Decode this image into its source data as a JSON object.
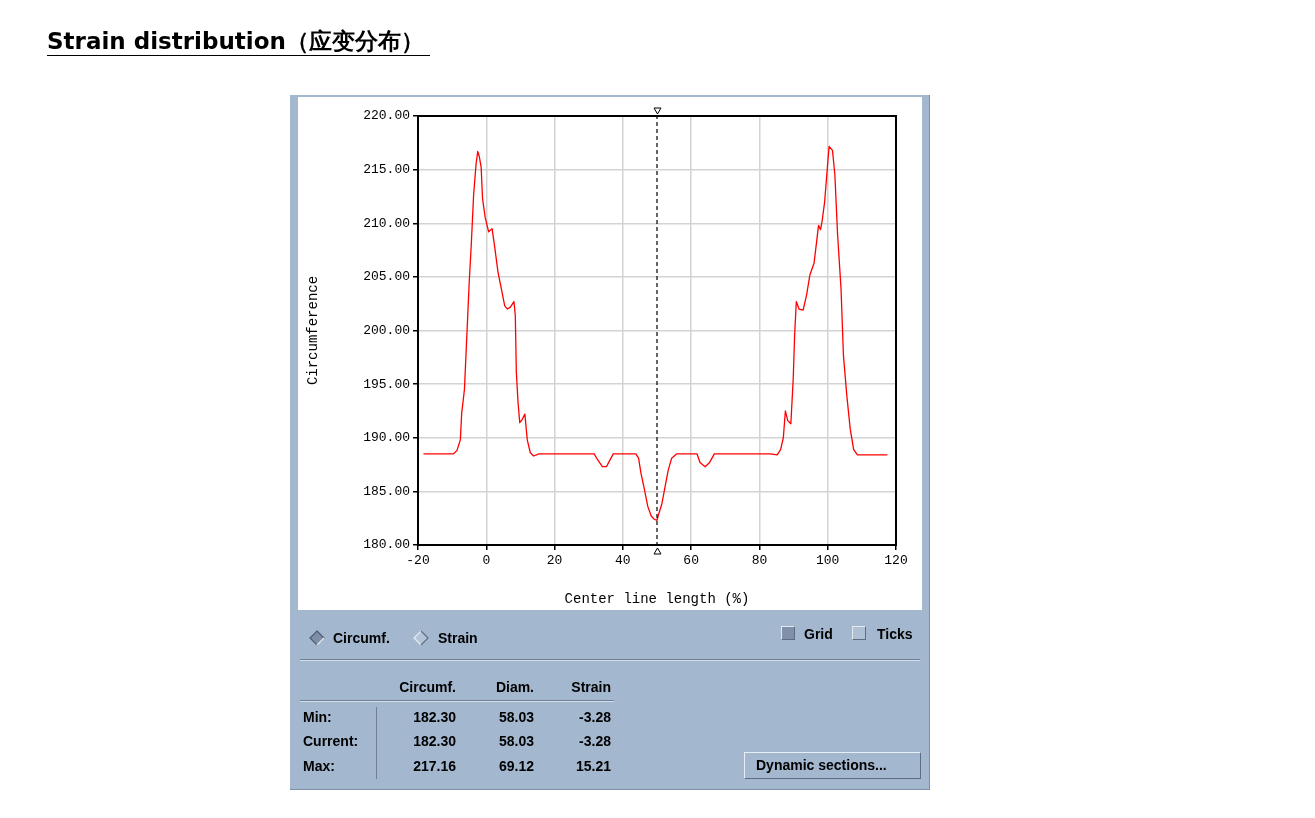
{
  "chart_data": {
    "type": "line",
    "title": "Strain distribution（应变分布）",
    "xlabel": "Center line length (%)",
    "ylabel": "Circumference",
    "x": [
      -18.4,
      -9.6,
      -8.6,
      -7.6,
      -7.2,
      -6.4,
      -5.7,
      -5.0,
      -4.4,
      -3.7,
      -3.0,
      -2.5,
      -2.1,
      -1.5,
      -1.1,
      -0.3,
      0.7,
      1.7,
      2.5,
      3.4,
      4.4,
      5.4,
      6.2,
      7.1,
      8.1,
      8.5,
      8.8,
      9.3,
      9.8,
      10.5,
      11.3,
      12.0,
      12.9,
      13.9,
      15.4,
      31.6,
      32.5,
      34.0,
      35.2,
      36.0,
      37.2,
      43.8,
      44.6,
      45.3,
      46.3,
      47.3,
      48.3,
      49.2,
      50.0,
      50.4,
      51.4,
      52.4,
      53.3,
      54.3,
      55.8,
      61.7,
      62.6,
      64.1,
      65.4,
      66.8,
      83.2,
      85.2,
      86.2,
      87.0,
      87.6,
      88.3,
      89.2,
      89.9,
      90.3,
      90.8,
      91.6,
      92.8,
      93.8,
      94.8,
      96.0,
      96.8,
      97.3,
      97.9,
      98.4,
      99.1,
      99.9,
      100.4,
      101.4,
      102.1,
      102.9,
      103.9,
      104.6,
      105.6,
      106.6,
      107.6,
      108.7,
      117.5
    ],
    "series": [
      {
        "color": "#ff0000",
        "values": [
          188.5,
          188.5,
          188.8,
          189.8,
          192.3,
          194.5,
          199.5,
          204.5,
          208.0,
          212.7,
          215.5,
          216.7,
          216.3,
          215.2,
          212.3,
          210.5,
          209.2,
          209.5,
          207.7,
          205.5,
          203.9,
          202.3,
          202.0,
          202.2,
          202.7,
          201.4,
          196.1,
          193.3,
          191.4,
          191.7,
          192.2,
          189.8,
          188.6,
          188.3,
          188.5,
          188.5,
          188.0,
          187.3,
          187.3,
          187.8,
          188.5,
          188.5,
          188.1,
          186.7,
          185.2,
          183.6,
          182.7,
          182.4,
          182.3,
          182.8,
          183.8,
          185.5,
          187.0,
          188.1,
          188.5,
          188.5,
          187.7,
          187.3,
          187.7,
          188.5,
          188.5,
          188.4,
          188.9,
          190.0,
          192.5,
          191.6,
          191.3,
          195.5,
          199.5,
          202.7,
          202.0,
          201.9,
          203.3,
          205.2,
          206.3,
          208.4,
          209.8,
          209.4,
          210.3,
          212.0,
          215.2,
          217.16,
          216.8,
          214.5,
          208.9,
          203.9,
          197.7,
          193.9,
          190.8,
          188.9,
          188.4,
          188.4
        ]
      }
    ],
    "xlim": [
      -20,
      120
    ],
    "xticks": [
      -20,
      0,
      20,
      40,
      60,
      80,
      100,
      120
    ],
    "ylim": [
      180,
      220
    ],
    "yticks": [
      {
        "value": 180,
        "label": "180.00"
      },
      {
        "value": 185,
        "label": "185.00"
      },
      {
        "value": 190,
        "label": "190.00"
      },
      {
        "value": 195,
        "label": "195.00"
      },
      {
        "value": 200,
        "label": "200.00"
      },
      {
        "value": 205,
        "label": "205.00"
      },
      {
        "value": 210,
        "label": "210.00"
      },
      {
        "value": 215,
        "label": "215.00"
      },
      {
        "value": 220,
        "label": "220.00"
      }
    ],
    "grid": true,
    "ref_lines": [
      {
        "axis": "x",
        "value": 50,
        "color": "#000000",
        "line_style": "dashed"
      }
    ],
    "annotations": [
      "Circumf.",
      "Strain",
      "Grid",
      "Ticks",
      "Circumf.",
      "Diam.",
      "Strain",
      "Min:",
      "182.30",
      "58.03",
      "-3.28",
      "Current:",
      "182.30",
      "58.03",
      "-3.28",
      "Max:",
      "217.16",
      "69.12",
      "15.21",
      "Dynamic sections..."
    ]
  }
}
